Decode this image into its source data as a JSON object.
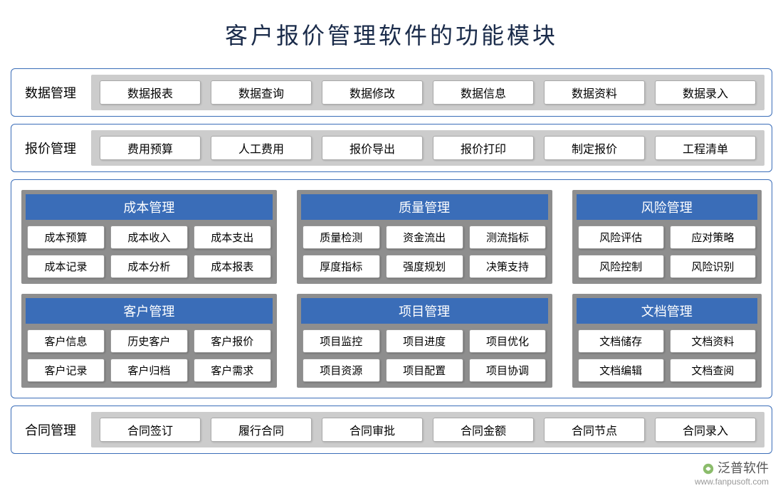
{
  "title": "客户报价管理软件的功能模块",
  "colors": {
    "border": "#3a6db8",
    "header_bg": "#3a6db8",
    "header_text": "#ffffff",
    "module_bg": "#8e8e8e",
    "row_items_bg": "#cccccc",
    "pill_bg": "#ffffff",
    "title_color": "#1a2b4a"
  },
  "row1": {
    "label": "数据管理",
    "items": [
      "数据报表",
      "数据查询",
      "数据修改",
      "数据信息",
      "数据资料",
      "数据录入"
    ]
  },
  "row2": {
    "label": "报价管理",
    "items": [
      "费用预算",
      "人工费用",
      "报价导出",
      "报价打印",
      "制定报价",
      "工程清单"
    ]
  },
  "modules": [
    {
      "title": "成本管理",
      "cols": 3,
      "items": [
        "成本预算",
        "成本收入",
        "成本支出",
        "成本记录",
        "成本分析",
        "成本报表"
      ]
    },
    {
      "title": "质量管理",
      "cols": 3,
      "items": [
        "质量检测",
        "资金流出",
        "测流指标",
        "厚度指标",
        "强度规划",
        "决策支持"
      ]
    },
    {
      "title": "风险管理",
      "cols": 2,
      "items": [
        "风险评估",
        "应对策略",
        "风险控制",
        "风险识别"
      ]
    },
    {
      "title": "客户管理",
      "cols": 3,
      "items": [
        "客户信息",
        "历史客户",
        "客户报价",
        "客户记录",
        "客户归档",
        "客户需求"
      ]
    },
    {
      "title": "项目管理",
      "cols": 3,
      "items": [
        "项目监控",
        "项目进度",
        "项目优化",
        "项目资源",
        "项目配置",
        "项目协调"
      ]
    },
    {
      "title": "文档管理",
      "cols": 2,
      "items": [
        "文档储存",
        "文档资料",
        "文档编辑",
        "文档查阅"
      ]
    }
  ],
  "row3": {
    "label": "合同管理",
    "items": [
      "合同签订",
      "履行合同",
      "合同审批",
      "合同金额",
      "合同节点",
      "合同录入"
    ]
  },
  "watermark": {
    "brand": "泛普软件",
    "url": "www.fanpusoft.com"
  }
}
